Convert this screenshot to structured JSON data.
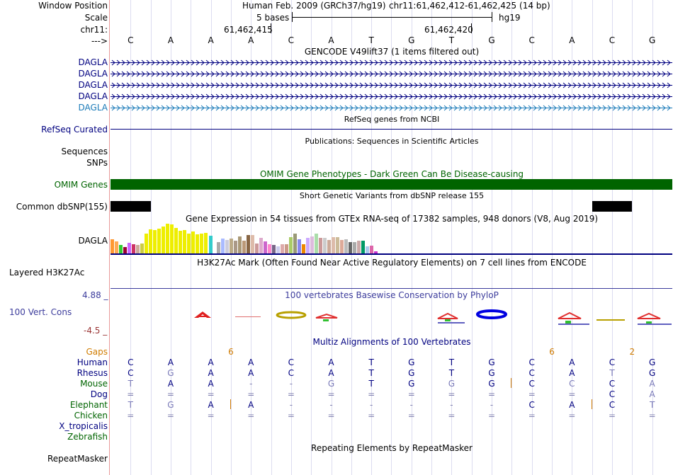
{
  "header": {
    "window_position_label": "Window Position",
    "scale_label": "Scale",
    "chrom_label": "chr11:",
    "arrow_label": "--->",
    "assembly_text": "Human Feb. 2009 (GRCh37/hg19)",
    "position_text": "chr11:61,462,412-61,462,425 (14 bp)",
    "scale_bases": "5 bases",
    "scale_db": "hg19",
    "coord_1": "61,462,415",
    "coord_2": "61,462,420",
    "bases": [
      "C",
      "A",
      "A",
      "A",
      "C",
      "A",
      "T",
      "G",
      "T",
      "G",
      "C",
      "A",
      "C",
      "G"
    ]
  },
  "tracks": {
    "gencode": {
      "title": "GENCODE V49lift37 (1 items filtered out)",
      "items": [
        "DAGLA",
        "DAGLA",
        "DAGLA",
        "DAGLA",
        "DAGLA"
      ]
    },
    "refseq": {
      "title": "RefSeq genes from NCBI",
      "label": "RefSeq Curated"
    },
    "publications": {
      "title": "Publications: Sequences in Scientific Articles",
      "label_1": "Sequences",
      "label_2": "SNPs"
    },
    "omim": {
      "title": "OMIM Gene Phenotypes - Dark Green Can Be Disease-causing",
      "label": "OMIM Genes"
    },
    "dbsnp": {
      "title": "Short Genetic Variants from dbSNP release 155",
      "label": "Common dbSNP(155)"
    },
    "gtex": {
      "title": "Gene Expression in 54 tissues from GTEx RNA-seq of 17382 samples, 948 donors (V8, Aug 2019)",
      "label": "DAGLA"
    },
    "h3k27ac": {
      "title": "H3K27Ac Mark (Often Found Near Active Regulatory Elements) on 7 cell lines from ENCODE",
      "label": "Layered H3K27Ac"
    },
    "phylop": {
      "title": "100 vertebrates Basewise Conservation by PhyloP",
      "label": "100 Vert. Cons",
      "max": "4.88 _",
      "min": "-4.5 _"
    },
    "multiz": {
      "title": "Multiz Alignments of 100 Vertebrates",
      "gaps_label": "Gaps",
      "gaps": [
        "",
        "",
        "6",
        "",
        "",
        "",
        "",
        "",
        "",
        "",
        "6",
        "",
        "2",
        ""
      ],
      "species": [
        {
          "name": "Human",
          "cells": [
            "C",
            "A",
            "A",
            "A",
            "C",
            "A",
            "T",
            "G",
            "T",
            "G",
            "C",
            "A",
            "C",
            "G"
          ]
        },
        {
          "name": "Rhesus",
          "cells": [
            "C",
            "G",
            "A",
            "A",
            "C",
            "A",
            "T",
            "G",
            "T",
            "G",
            "C",
            "A",
            "T",
            "G"
          ]
        },
        {
          "name": "Mouse",
          "cells": [
            "T",
            "A",
            "A",
            "-",
            "-",
            "G",
            "T",
            "G",
            "G",
            "G",
            "C",
            "C",
            "C",
            "A"
          ]
        },
        {
          "name": "Dog",
          "cells": [
            "=",
            "=",
            "=",
            "=",
            "=",
            "=",
            "=",
            "=",
            "=",
            "=",
            "=",
            "=",
            "C",
            "A"
          ]
        },
        {
          "name": "Elephant",
          "cells": [
            "T",
            "G",
            "A",
            "A",
            "-",
            "-",
            "-",
            "-",
            "-",
            "-",
            "C",
            "A",
            "C",
            "T"
          ]
        },
        {
          "name": "Chicken",
          "cells": [
            "=",
            "=",
            "=",
            "=",
            "=",
            "=",
            "=",
            "=",
            "=",
            "=",
            "=",
            "=",
            "=",
            "="
          ]
        },
        {
          "name": "X_tropicalis",
          "cells": [
            "",
            "",
            "",
            "",
            "",
            "",
            "",
            "",
            "",
            "",
            "",
            "",
            "",
            ""
          ]
        },
        {
          "name": "Zebrafish",
          "cells": [
            "",
            "",
            "",
            "",
            "",
            "",
            "",
            "",
            "",
            "",
            "",
            "",
            "",
            ""
          ]
        }
      ]
    },
    "repeatmasker": {
      "title": "Repeating Elements by RepeatMasker",
      "label": "RepeatMasker"
    }
  },
  "colors": {
    "navy": "#000080",
    "omim_green": "#006400",
    "phylop_blue": "#3c3c9c",
    "gaps_orange": "#d07c00"
  }
}
